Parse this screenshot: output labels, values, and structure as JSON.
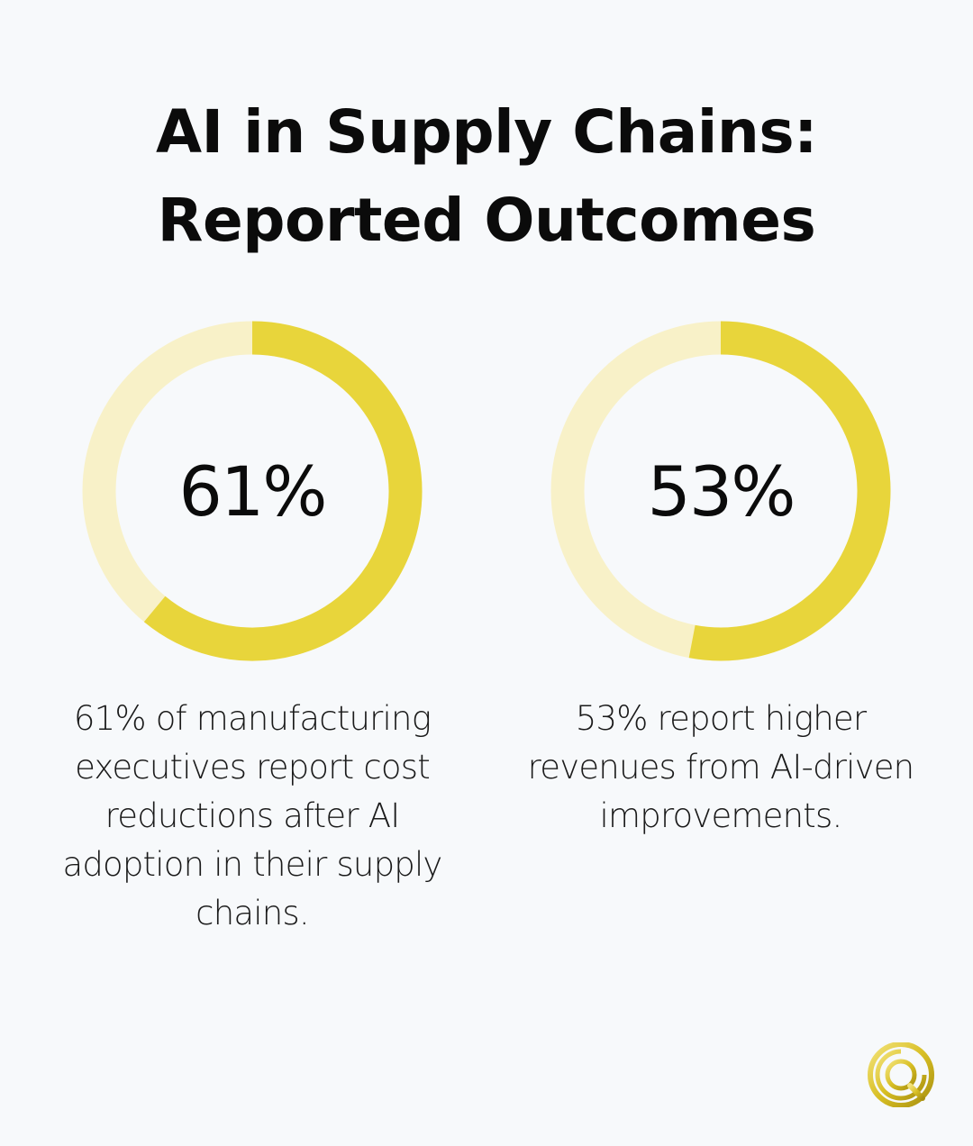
{
  "title_lines": [
    "AI in Supply Chains:",
    "Reported Outcomes"
  ],
  "colors": {
    "background": "#f7f9fb",
    "accent": "#e8d53b",
    "track": "#f8f1c8",
    "text": "#0b0b0b"
  },
  "chart_data": [
    {
      "type": "pie",
      "style": "donut",
      "value": 61,
      "label": "61%",
      "caption": "61% of manufacturing executives report cost reductions after AI adoption in their supply chains."
    },
    {
      "type": "pie",
      "style": "donut",
      "value": 53,
      "label": "53%",
      "caption": "53% report higher revenues from AI-driven improvements."
    }
  ],
  "logo": {
    "icon": "gold-q-logo-icon"
  }
}
